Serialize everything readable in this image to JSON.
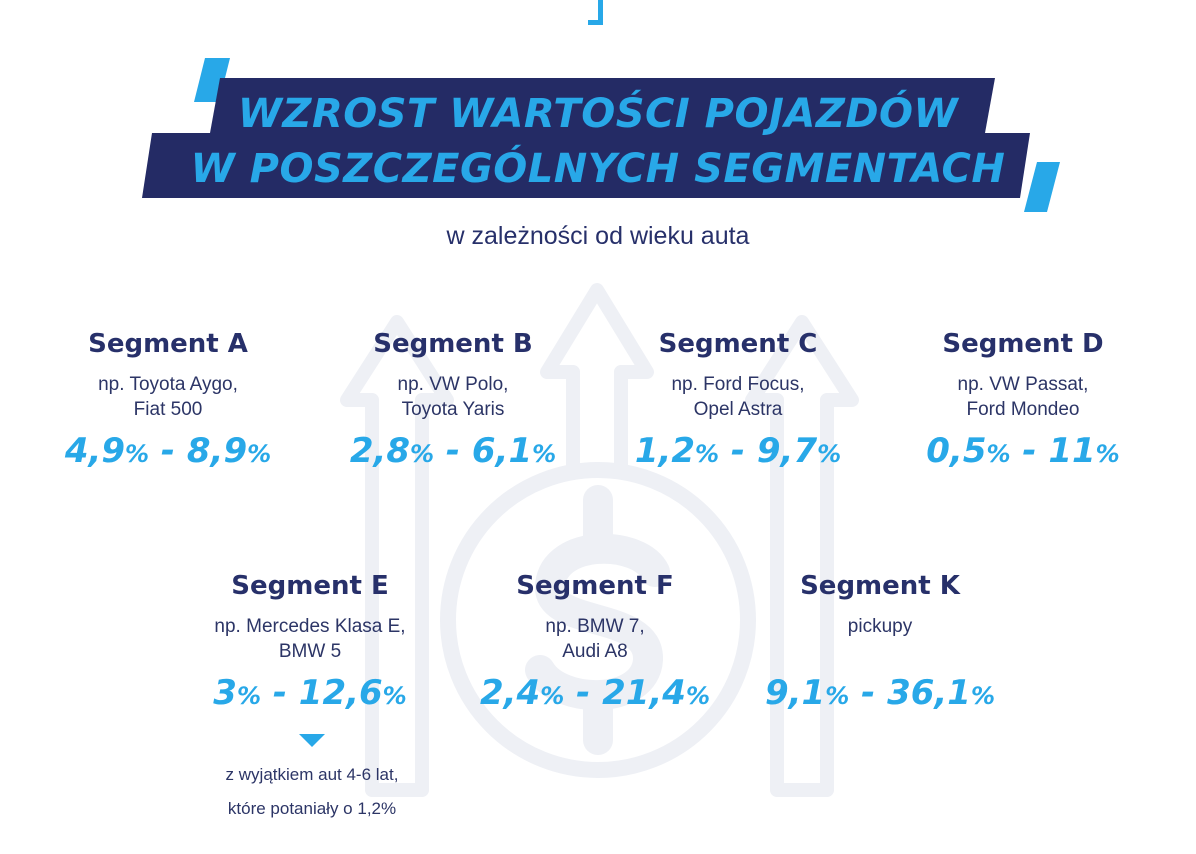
{
  "title": {
    "line1": "WZROST WARTOŚCI POJAZDÓW",
    "line2": "W POSZCZEGÓLNYCH SEGMENTACH"
  },
  "subtitle": "w zależności od wieku auta",
  "colors": {
    "navy": "#242b65",
    "accent_blue": "#28a8e8",
    "text_dark": "#27306a",
    "watermark": "#eef0f5"
  },
  "icons": [
    "arrow-up-icon",
    "dollar-coin-icon",
    "triangle-down-icon"
  ],
  "segments": [
    {
      "name": "Segment A",
      "ex1": "np. Toyota Aygo,",
      "ex2": "Fiat 500",
      "min": "4,9",
      "max": "8,9"
    },
    {
      "name": "Segment B",
      "ex1": "np. VW Polo,",
      "ex2": "Toyota Yaris",
      "min": "2,8",
      "max": "6,1"
    },
    {
      "name": "Segment C",
      "ex1": "np. Ford Focus,",
      "ex2": "Opel Astra",
      "min": "1,2",
      "max": "9,7"
    },
    {
      "name": "Segment D",
      "ex1": "np. VW Passat,",
      "ex2": "Ford Mondeo",
      "min": "0,5",
      "max": "11"
    },
    {
      "name": "Segment E",
      "ex1": "np. Mercedes Klasa E,",
      "ex2": "BMW 5",
      "min": "3",
      "max": "12,6"
    },
    {
      "name": "Segment F",
      "ex1": "np. BMW 7,",
      "ex2": "Audi A8",
      "min": "2,4",
      "max": "21,4"
    },
    {
      "name": "Segment K",
      "ex1": "pickupy",
      "ex2": "",
      "min": "9,1",
      "max": "36,1"
    }
  ],
  "note": {
    "line1": "z wyjątkiem aut 4-6 lat,",
    "line2": "które potaniały o 1,2%"
  }
}
